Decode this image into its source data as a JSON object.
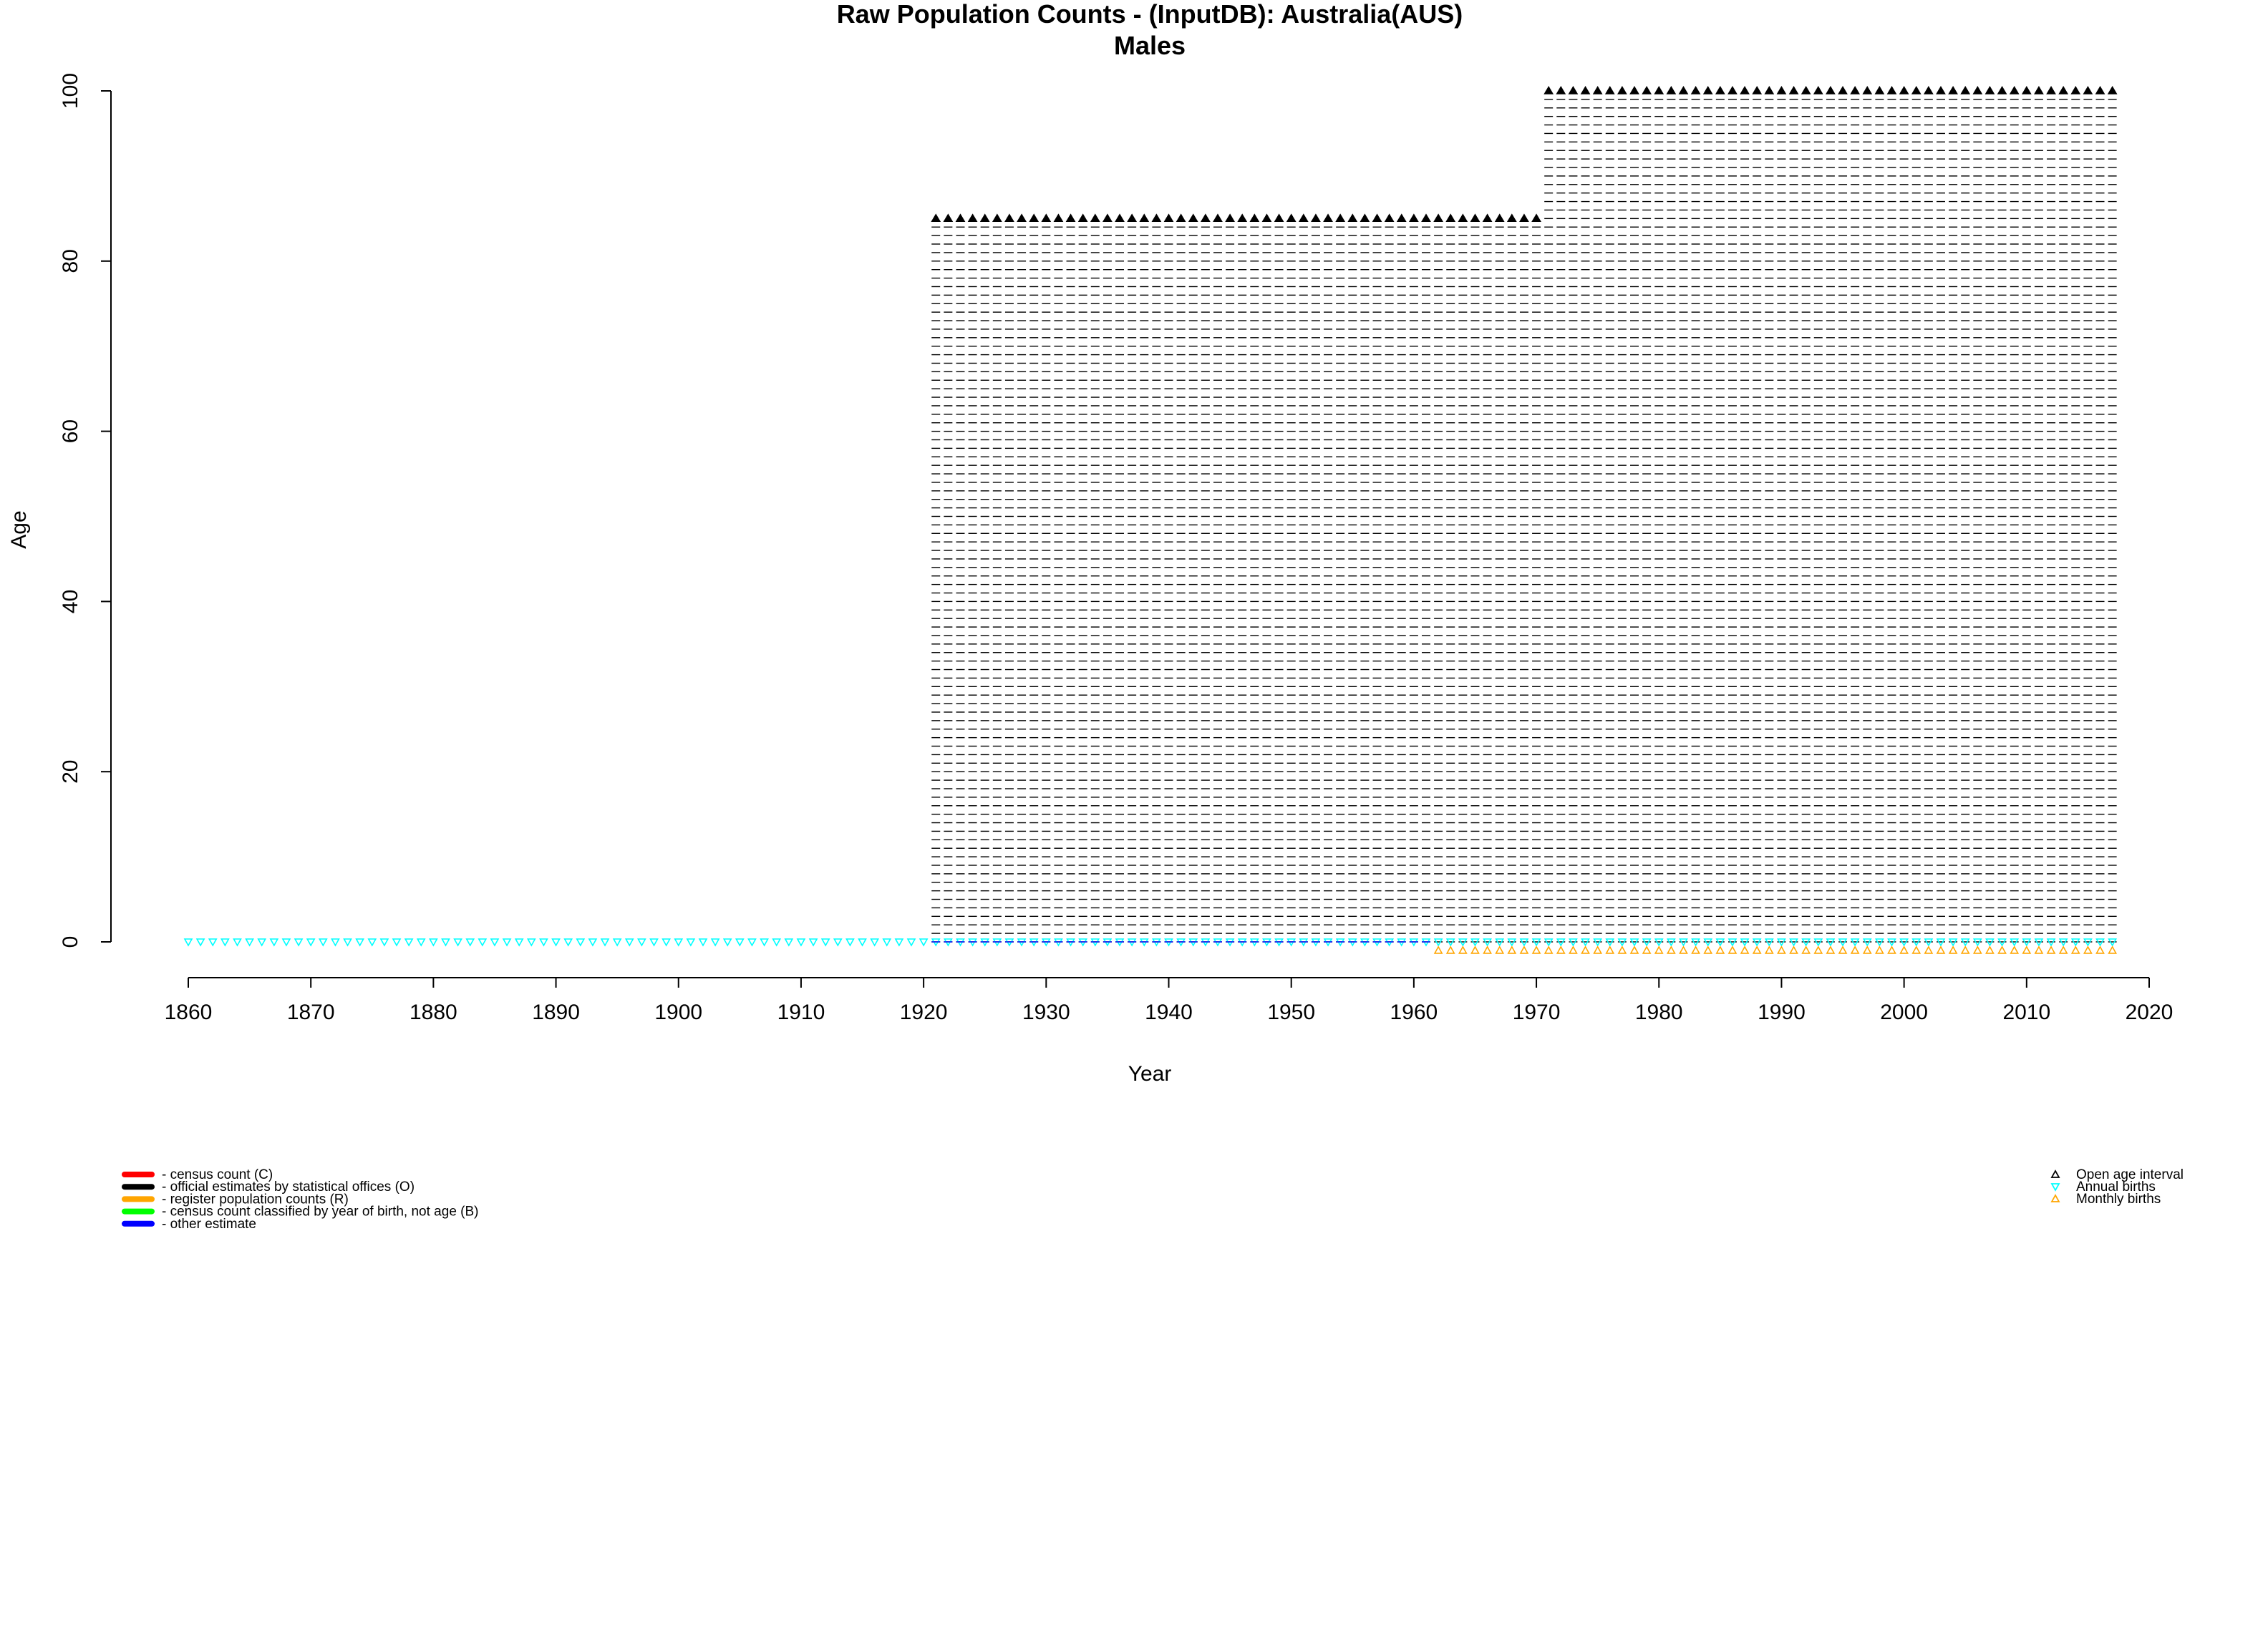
{
  "chart_data": {
    "type": "scatter",
    "title": "Raw Population Counts - (InputDB): Australia(AUS)",
    "subtitle": "Males",
    "xlabel": "Year",
    "ylabel": "Age",
    "xlim": [
      1860,
      2020
    ],
    "ylim": [
      0,
      100
    ],
    "x_ticks": [
      "1860",
      "1870",
      "1880",
      "1890",
      "1900",
      "1910",
      "1920",
      "1930",
      "1940",
      "1950",
      "1960",
      "1970",
      "1980",
      "1990",
      "2000",
      "2010",
      "2020"
    ],
    "y_ticks": [
      "0",
      "20",
      "40",
      "60",
      "80",
      "100"
    ],
    "grid": false,
    "series": [
      {
        "name": "official estimates by statistical offices (O)",
        "marker": "dash",
        "color": "#000000",
        "segments": [
          {
            "year_start": 1921,
            "year_end": 1970,
            "age_start": 0,
            "age_end": 85,
            "age_step": 1
          },
          {
            "year_start": 1971,
            "year_end": 2017,
            "age_start": 0,
            "age_end": 100,
            "age_step": 1
          }
        ]
      },
      {
        "name": "Open age interval",
        "marker": "triangle-up-filled",
        "color": "#000000",
        "segments": [
          {
            "year_start": 1921,
            "year_end": 1970,
            "age": 85
          },
          {
            "year_start": 1971,
            "year_end": 2017,
            "age": 100
          }
        ]
      },
      {
        "name": "Annual births",
        "marker": "triangle-down",
        "color": "#00ffff",
        "segments": [
          {
            "year_start": 1860,
            "year_end": 2017,
            "age": 0
          }
        ]
      },
      {
        "name": "Monthly births",
        "marker": "triangle-up",
        "color": "#ffa500",
        "segments": [
          {
            "year_start": 1962,
            "year_end": 2017,
            "age": -1
          }
        ]
      },
      {
        "name": "other estimate",
        "marker": "dash",
        "color": "#0000ff",
        "segments": [
          {
            "year_start": 1921,
            "year_end": 1961,
            "age": 0
          }
        ]
      }
    ],
    "legend_left": {
      "placement": "bottom-left",
      "items": [
        {
          "label": "- census count (C)",
          "color": "#ff0000"
        },
        {
          "label": "- official estimates by statistical offices (O)",
          "color": "#000000"
        },
        {
          "label": "- register population counts (R)",
          "color": "#ffa500"
        },
        {
          "label": "- census count classified by year of birth, not age (B)",
          "color": "#00ff00"
        },
        {
          "label": "- other estimate",
          "color": "#0000ff"
        }
      ]
    },
    "legend_right": {
      "placement": "bottom-right",
      "items": [
        {
          "label": "Open age interval",
          "symbol": "triangle-up",
          "color": "#000000"
        },
        {
          "label": "Annual births",
          "symbol": "triangle-down",
          "color": "#00ffff"
        },
        {
          "label": "Monthly births",
          "symbol": "triangle-up",
          "color": "#ffa500"
        }
      ]
    }
  }
}
